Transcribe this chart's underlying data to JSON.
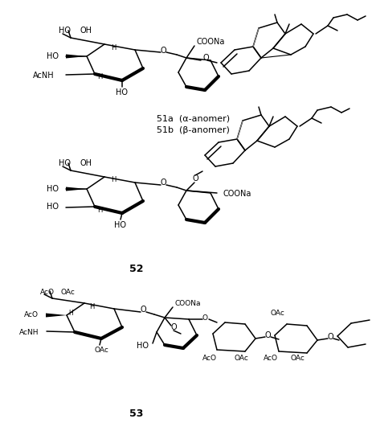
{
  "bg_color": "#ffffff",
  "fig_width": 4.64,
  "fig_height": 5.36,
  "dpi": 100,
  "label_51a": "51a  (α-anomer)",
  "label_51b": "51b  (β-anomer)",
  "label_52": "52",
  "label_53": "53"
}
